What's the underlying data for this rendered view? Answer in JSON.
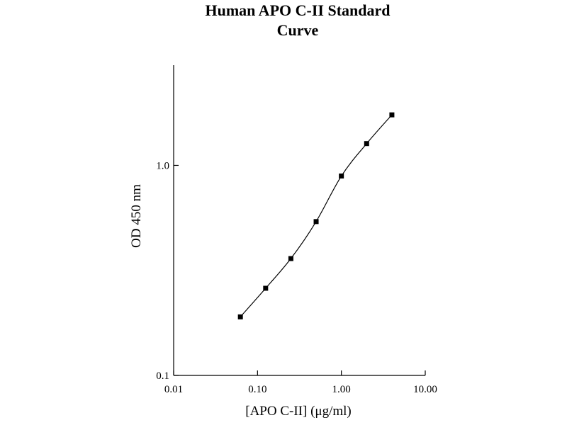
{
  "chart_data": {
    "type": "scatter",
    "title_lines": [
      "Human APO C-II Standard",
      "Curve"
    ],
    "xlabel": "[APO C-II] (μg/ml)",
    "ylabel": "OD 450 nm",
    "x_scale": "log",
    "y_scale": "log",
    "xlim": [
      0.01,
      10
    ],
    "ylim": [
      0.1,
      3
    ],
    "x_ticks": [
      {
        "value": 0.01,
        "label": "0.01"
      },
      {
        "value": 0.1,
        "label": "0.10"
      },
      {
        "value": 1,
        "label": "1.00"
      },
      {
        "value": 10,
        "label": "10.00"
      }
    ],
    "y_ticks": [
      {
        "value": 0.1,
        "label": "0.1"
      },
      {
        "value": 1,
        "label": "1.0"
      }
    ],
    "grid": false,
    "series": [
      {
        "x": [
          0.0625,
          0.125,
          0.25,
          0.5,
          1.0,
          2.0,
          4.0
        ],
        "y": [
          0.19,
          0.26,
          0.36,
          0.54,
          0.89,
          1.27,
          1.74
        ]
      }
    ]
  }
}
